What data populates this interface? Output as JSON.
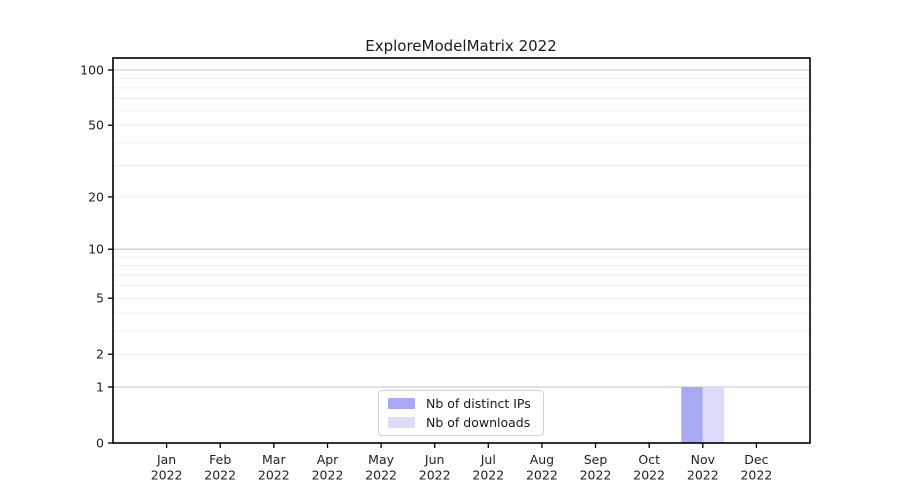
{
  "chart_data": {
    "type": "bar",
    "title": "ExploreModelMatrix 2022",
    "xlabel": "",
    "ylabel": "",
    "year_label": "2022",
    "categories": [
      "Jan",
      "Feb",
      "Mar",
      "Apr",
      "May",
      "Jun",
      "Jul",
      "Aug",
      "Sep",
      "Oct",
      "Nov",
      "Dec"
    ],
    "series": [
      {
        "name": "Nb of distinct IPs",
        "color": "#a9a9f4",
        "values": [
          0,
          0,
          0,
          0,
          0,
          0,
          0,
          0,
          0,
          0,
          1,
          0
        ]
      },
      {
        "name": "Nb of downloads",
        "color": "#dcdcf8",
        "values": [
          0,
          0,
          0,
          0,
          0,
          0,
          0,
          0,
          0,
          0,
          1,
          0
        ]
      }
    ],
    "yscale": "log10(value+1)",
    "ylim": [
      0,
      110
    ],
    "yticks": [
      0,
      1,
      2,
      5,
      10,
      20,
      50,
      100
    ],
    "major_gridlines": [
      1,
      10,
      100
    ],
    "minor_gridlines": [
      2,
      3,
      4,
      5,
      6,
      7,
      8,
      9,
      20,
      30,
      40,
      50,
      60,
      70,
      80,
      90
    ],
    "grid": true,
    "legend_position": "bottom-center",
    "colors": {
      "grid_major": "#c6c6c6",
      "grid_minor": "#ededed",
      "spine": "#000000",
      "text": "#1f1f1f"
    }
  }
}
